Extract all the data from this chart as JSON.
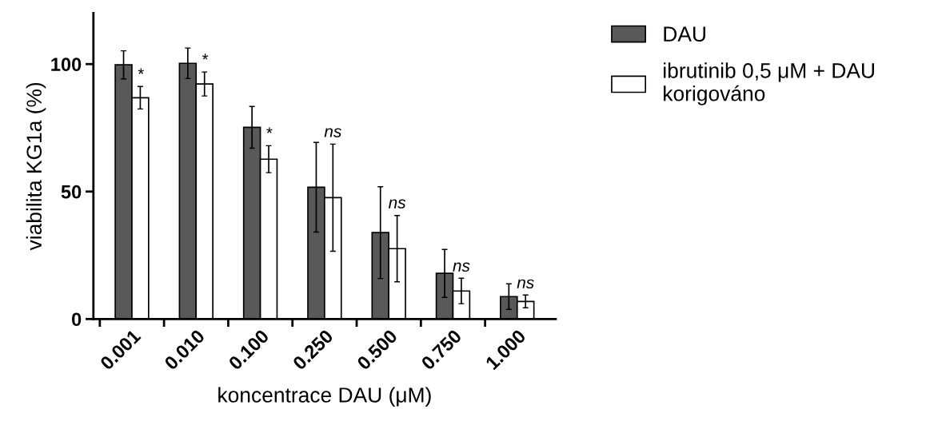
{
  "chart_data": {
    "type": "bar",
    "xlabel": "koncentrace DAU (μM)",
    "ylabel": "viabilita KG1a (%)",
    "categories": [
      "0.001",
      "0.010",
      "0.100",
      "0.250",
      "0.500",
      "0.750",
      "1.000"
    ],
    "series": [
      {
        "name": "DAU",
        "color": "#595959",
        "values": [
          99.7,
          100.3,
          75.2,
          51.7,
          33.9,
          17.9,
          8.8
        ],
        "errors": [
          5.5,
          6,
          8.2,
          17.6,
          18,
          9.4,
          5
        ]
      },
      {
        "name": "ibrutinib 0,5 μM + DAU\nkorigováno",
        "color": "#ffffff",
        "values": [
          86.8,
          92.2,
          62.7,
          47.6,
          27.6,
          11,
          6.9
        ],
        "errors": [
          4.4,
          4.7,
          5.3,
          21,
          13,
          5,
          2.5
        ]
      }
    ],
    "ylim": [
      0,
      120
    ],
    "yticks": [
      0,
      50,
      100
    ],
    "grid": false,
    "legend": "top right",
    "annotations": [
      {
        "text": "*",
        "x": "0.001",
        "y": 91.2
      },
      {
        "text": "*",
        "x": "0.010",
        "y": 96.9
      },
      {
        "text": "*",
        "x": "0.100",
        "y": 68
      },
      {
        "text": "ns",
        "x": "0.250",
        "y": 68.7
      },
      {
        "text": "ns",
        "x": "0.500",
        "y": 40.8
      },
      {
        "text": "ns",
        "x": "0.750",
        "y": 16
      },
      {
        "text": "ns",
        "x": "1.000",
        "y": 9.4
      }
    ]
  }
}
